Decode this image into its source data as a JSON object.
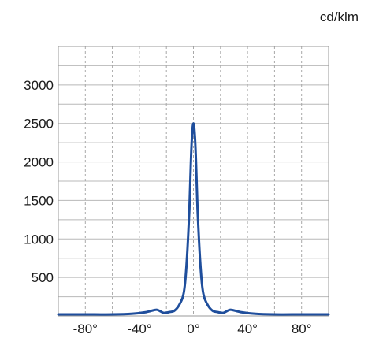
{
  "unit_label": "cd/klm",
  "chart_data": {
    "type": "line",
    "title": "",
    "xlabel": "",
    "ylabel": "cd/klm",
    "xlim": [
      -100,
      100
    ],
    "ylim": [
      0,
      3500
    ],
    "x_ticks": [
      -80,
      -40,
      0,
      40,
      80
    ],
    "x_tick_labels": [
      "-80°",
      "-40°",
      "0°",
      "40°",
      "80°"
    ],
    "y_ticks": [
      500,
      1000,
      1500,
      2000,
      2500,
      3000
    ],
    "y_tick_labels": [
      "500",
      "1000",
      "1500",
      "2000",
      "2500",
      "3000"
    ],
    "grid": true,
    "line_color": "#1f4e9c",
    "series": [
      {
        "x": [
          -100,
          -80,
          -60,
          -45,
          -35,
          -28,
          -25,
          -22,
          -18,
          -14,
          -10,
          -7,
          -5,
          -3,
          -2,
          -1,
          0,
          1,
          2,
          3,
          5,
          7,
          10,
          14,
          18,
          22,
          25,
          28,
          35,
          45,
          60,
          80,
          100
        ],
        "values": [
          20,
          20,
          20,
          30,
          50,
          80,
          65,
          40,
          50,
          70,
          160,
          320,
          700,
          1400,
          1950,
          2350,
          2500,
          2350,
          1950,
          1400,
          700,
          320,
          160,
          70,
          50,
          40,
          65,
          80,
          50,
          30,
          20,
          20,
          20
        ]
      }
    ]
  }
}
